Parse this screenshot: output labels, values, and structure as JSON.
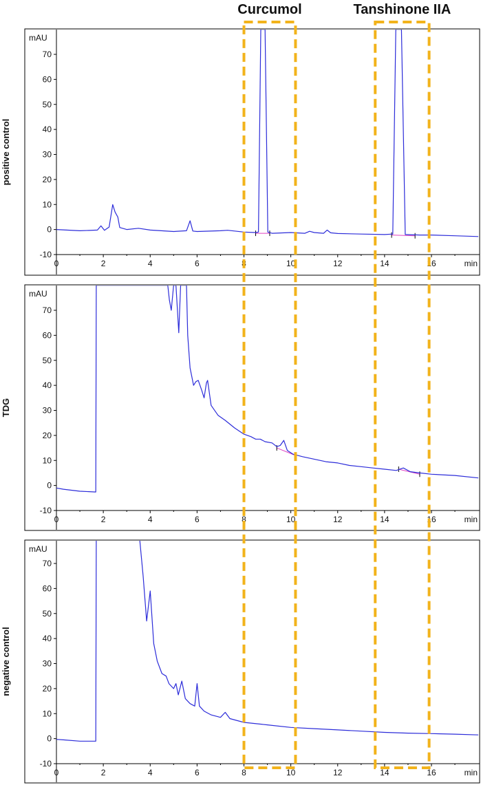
{
  "figure": {
    "highlight_color": "#f2b31b",
    "trace_color": "#2b2bd9",
    "baseline_color": "#e040c0",
    "highlights": [
      {
        "label": "Curcumol",
        "x_range": [
          8.0,
          10.2
        ]
      },
      {
        "label": "Tanshinone IIA",
        "x_range": [
          13.6,
          15.9
        ]
      }
    ]
  },
  "chart_data": [
    {
      "type": "line",
      "row_label": "positive control",
      "y_unit": "mAU",
      "x_unit": "min",
      "xlim": [
        0,
        18
      ],
      "ylim": [
        -10,
        78
      ],
      "x_ticks": [
        0,
        2,
        4,
        6,
        8,
        10,
        12,
        14,
        16
      ],
      "y_ticks": [
        -10,
        0,
        10,
        20,
        30,
        40,
        50,
        60,
        70
      ],
      "series": [
        {
          "color": "#2b2bd9",
          "points": [
            [
              0,
              0
            ],
            [
              1,
              -0.5
            ],
            [
              1.75,
              -0.2
            ],
            [
              1.9,
              1.5
            ],
            [
              2.05,
              -0.3
            ],
            [
              2.25,
              1
            ],
            [
              2.4,
              10
            ],
            [
              2.5,
              7
            ],
            [
              2.62,
              5
            ],
            [
              2.7,
              0.8
            ],
            [
              3,
              0
            ],
            [
              3.5,
              0.5
            ],
            [
              4,
              -0.2
            ],
            [
              5,
              -0.8
            ],
            [
              5.55,
              -0.5
            ],
            [
              5.7,
              3.5
            ],
            [
              5.82,
              -0.6
            ],
            [
              6,
              -0.8
            ],
            [
              7,
              -0.5
            ],
            [
              7.3,
              -0.3
            ],
            [
              8,
              -1
            ],
            [
              8.5,
              -1.2
            ],
            [
              8.62,
              -1
            ],
            [
              8.72,
              80
            ],
            [
              8.9,
              80
            ],
            [
              9.02,
              -1
            ],
            [
              9.2,
              -1.5
            ],
            [
              10,
              -1.2
            ],
            [
              10.6,
              -1.5
            ],
            [
              10.8,
              -0.7
            ],
            [
              11,
              -1.2
            ],
            [
              11.4,
              -1.5
            ],
            [
              11.55,
              -0.2
            ],
            [
              11.7,
              -1.3
            ],
            [
              12,
              -1.6
            ],
            [
              13,
              -1.8
            ],
            [
              14,
              -2
            ],
            [
              14.35,
              -1.8
            ],
            [
              14.48,
              80
            ],
            [
              14.72,
              80
            ],
            [
              14.88,
              -2
            ],
            [
              15.5,
              -2.2
            ],
            [
              16,
              -2.2
            ],
            [
              17,
              -2.5
            ],
            [
              18,
              -2.8
            ]
          ]
        }
      ],
      "baselines": [
        [
          [
            8.5,
            -1.5
          ],
          [
            9.1,
            -1.5
          ]
        ],
        [
          [
            14.3,
            -2.2
          ],
          [
            15.3,
            -2.5
          ]
        ]
      ]
    },
    {
      "type": "line",
      "row_label": "TDG",
      "y_unit": "mAU",
      "x_unit": "min",
      "xlim": [
        0,
        18
      ],
      "ylim": [
        -10,
        78
      ],
      "x_ticks": [
        0,
        2,
        4,
        6,
        8,
        10,
        12,
        14,
        16
      ],
      "y_ticks": [
        -10,
        0,
        10,
        20,
        30,
        40,
        50,
        60,
        70
      ],
      "series": [
        {
          "color": "#2b2bd9",
          "points": [
            [
              0,
              -1
            ],
            [
              0.3,
              -1.5
            ],
            [
              1,
              -2.3
            ],
            [
              1.68,
              -2.6
            ],
            [
              1.7,
              80
            ],
            [
              4.75,
              80
            ],
            [
              4.82,
              74
            ],
            [
              4.9,
              70
            ],
            [
              5,
              80
            ],
            [
              5.1,
              80
            ],
            [
              5.22,
              61
            ],
            [
              5.3,
              80
            ],
            [
              5.4,
              80
            ],
            [
              5.55,
              80
            ],
            [
              5.6,
              60
            ],
            [
              5.7,
              47
            ],
            [
              5.85,
              40
            ],
            [
              5.95,
              41.5
            ],
            [
              6.05,
              42
            ],
            [
              6.2,
              38
            ],
            [
              6.3,
              35
            ],
            [
              6.4,
              41
            ],
            [
              6.45,
              42
            ],
            [
              6.6,
              32
            ],
            [
              6.9,
              28
            ],
            [
              7.2,
              26
            ],
            [
              7.6,
              23
            ],
            [
              8,
              20.5
            ],
            [
              8.3,
              19.5
            ],
            [
              8.5,
              18.5
            ],
            [
              8.7,
              18.5
            ],
            [
              8.9,
              17.5
            ],
            [
              9.2,
              17
            ],
            [
              9.4,
              15.5
            ],
            [
              9.55,
              16
            ],
            [
              9.7,
              18
            ],
            [
              9.85,
              14
            ],
            [
              10.1,
              12.5
            ],
            [
              10.5,
              11.5
            ],
            [
              11,
              10.5
            ],
            [
              11.5,
              9.5
            ],
            [
              12,
              9
            ],
            [
              12.5,
              8
            ],
            [
              13,
              7.5
            ],
            [
              13.5,
              7
            ],
            [
              14,
              6.5
            ],
            [
              14.5,
              6
            ],
            [
              14.8,
              7
            ],
            [
              15.1,
              5.5
            ],
            [
              15.5,
              5
            ],
            [
              16,
              4.5
            ],
            [
              17,
              4
            ],
            [
              18,
              3
            ]
          ]
        }
      ],
      "baselines": [
        [
          [
            9.4,
            15
          ],
          [
            10.2,
            12
          ]
        ],
        [
          [
            14.6,
            6.5
          ],
          [
            15.5,
            4.5
          ]
        ]
      ]
    },
    {
      "type": "line",
      "row_label": "negative control",
      "y_unit": "mAU",
      "x_unit": "min",
      "xlim": [
        0,
        18
      ],
      "ylim": [
        -10,
        78
      ],
      "x_ticks": [
        0,
        2,
        4,
        6,
        8,
        10,
        12,
        14,
        16
      ],
      "y_ticks": [
        -10,
        0,
        10,
        20,
        30,
        40,
        50,
        60,
        70
      ],
      "series": [
        {
          "color": "#2b2bd9",
          "points": [
            [
              0,
              -0.3
            ],
            [
              0.3,
              -0.5
            ],
            [
              1,
              -1
            ],
            [
              1.68,
              -1
            ],
            [
              1.7,
              80
            ],
            [
              3.55,
              80
            ],
            [
              3.7,
              65
            ],
            [
              3.85,
              47
            ],
            [
              4,
              59
            ],
            [
              4.15,
              38
            ],
            [
              4.3,
              31
            ],
            [
              4.5,
              26
            ],
            [
              4.68,
              25
            ],
            [
              4.8,
              22
            ],
            [
              5,
              20
            ],
            [
              5.1,
              22
            ],
            [
              5.2,
              17.5
            ],
            [
              5.35,
              23
            ],
            [
              5.5,
              16
            ],
            [
              5.7,
              14
            ],
            [
              5.9,
              13
            ],
            [
              6,
              22
            ],
            [
              6.1,
              13
            ],
            [
              6.3,
              11
            ],
            [
              6.6,
              9.5
            ],
            [
              7,
              8.5
            ],
            [
              7.2,
              10.5
            ],
            [
              7.4,
              8
            ],
            [
              8,
              6.5
            ],
            [
              9,
              5.5
            ],
            [
              10,
              4.5
            ],
            [
              11,
              4
            ],
            [
              12,
              3.5
            ],
            [
              13,
              3
            ],
            [
              14,
              2.5
            ],
            [
              15,
              2.2
            ],
            [
              16,
              2
            ],
            [
              17,
              1.8
            ],
            [
              18,
              1.5
            ]
          ]
        }
      ],
      "baselines": []
    }
  ]
}
